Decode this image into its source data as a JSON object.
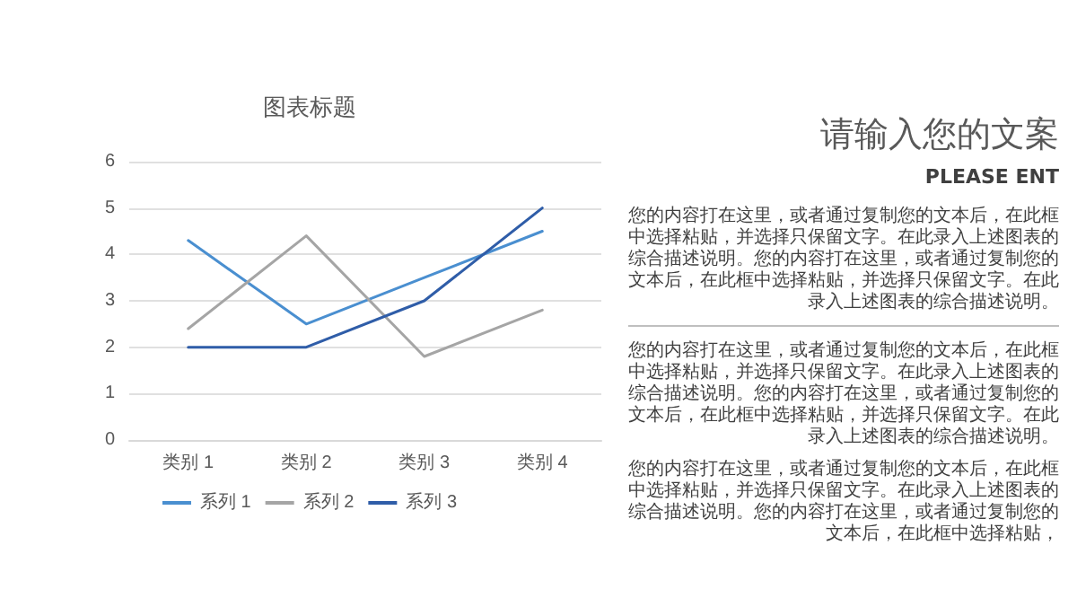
{
  "chart_data": {
    "type": "line",
    "title": "图表标题",
    "categories": [
      "类别 1",
      "类别 2",
      "类别 3",
      "类别 4"
    ],
    "series": [
      {
        "name": "系列 1",
        "color": "#4a8fd0",
        "values": [
          4.3,
          2.5,
          3.5,
          4.5
        ]
      },
      {
        "name": "系列 2",
        "color": "#a5a5a5",
        "values": [
          2.4,
          4.4,
          1.8,
          2.8
        ]
      },
      {
        "name": "系列 3",
        "color": "#2f5da8",
        "values": [
          2,
          2,
          3,
          5
        ]
      }
    ],
    "ylim": [
      0,
      6
    ],
    "yticks": [
      0,
      1,
      2,
      3,
      4,
      5,
      6
    ],
    "grid": "y",
    "legend": "bottom",
    "marker": "none",
    "line_style": "solid",
    "annotations": [
      "请输入您的文案",
      "PLEASE ENT",
      "您的内容打在这里，或者通过复制您的文本后，在此框中选择粘贴，并选择只保留文字。在此录入上述图表的综合描述说明。您的内容打在这里，或者通过复制您的文本后，在此框中选择粘贴，并选择只保留文字。在此录入上述图表的综合描述说明。",
      "您的内容打在这里，或者通过复制您的文本后，在此框中选择粘贴，并选择只保留文字。在此录入上述图表的综合描述说明。您的内容打在这里，或者通过复制您的文本后，在此框中选择粘贴，并选择只保留文字。在此录入上述图表的综合描述说明。",
      "您的内容打在这里，或者通过复制您的文本后，在此框中选择粘贴，并选择只保留文字。在此录入上述图表的综合描述说明。您的内容打在这里，或者通过复制您的文本后，在此框中选择粘贴，"
    ]
  }
}
